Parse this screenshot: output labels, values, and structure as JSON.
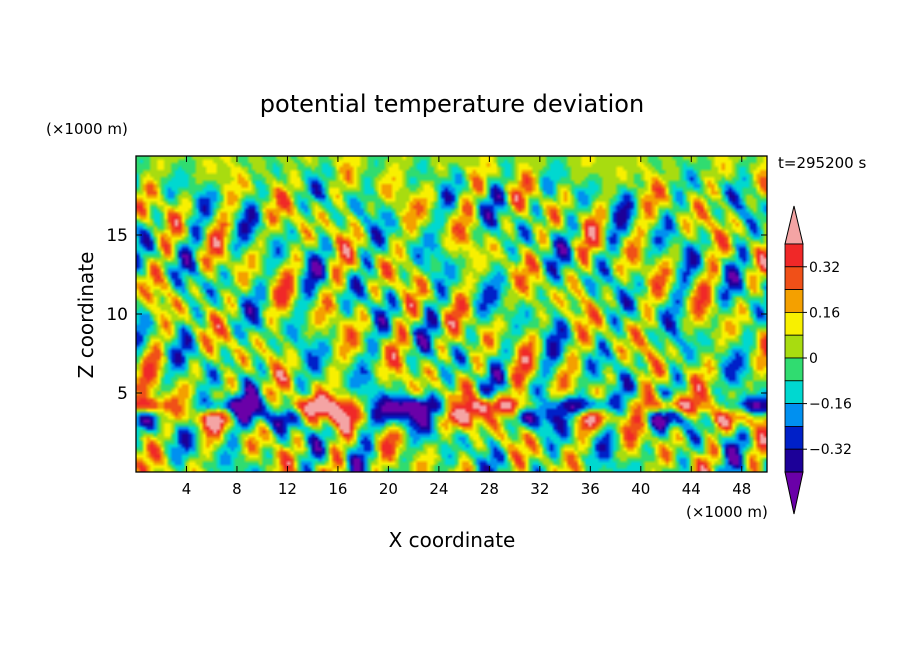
{
  "chart_data": {
    "type": "heatmap",
    "title": "potential temperature deviation",
    "xlabel": "X coordinate",
    "ylabel": "Z coordinate",
    "x_unit": "(×1000 m)",
    "y_unit": "(×1000 m)",
    "time_label": "t=295200 s",
    "xlim": [
      0,
      50
    ],
    "ylim": [
      0,
      20
    ],
    "x_ticks": [
      4,
      8,
      12,
      16,
      20,
      24,
      28,
      32,
      36,
      40,
      44,
      48
    ],
    "y_ticks": [
      5,
      10,
      15
    ],
    "x_tick_labels": [
      "4",
      "8",
      "12",
      "16",
      "20",
      "24",
      "28",
      "32",
      "36",
      "40",
      "44",
      "48"
    ],
    "y_tick_labels": [
      "5",
      "10",
      "15"
    ],
    "contour_levels": [
      -0.48,
      -0.4,
      -0.32,
      -0.24,
      -0.16,
      -0.08,
      0,
      0.08,
      0.16,
      0.24,
      0.32,
      0.4,
      0.48
    ],
    "colorbar_ticks": [
      0.32,
      0.16,
      0,
      -0.16,
      -0.32
    ],
    "colorbar_tick_labels": [
      "0.32",
      "0.16",
      "0",
      "−0.16",
      "−0.32"
    ],
    "colors_high_to_low": [
      "#f4a4a4",
      "#f02828",
      "#f05018",
      "#f4a000",
      "#f8f000",
      "#a8dc10",
      "#30dc70",
      "#00d8d0",
      "#0090f0",
      "#0020c8",
      "#1c0098",
      "#6a00a8"
    ]
  }
}
